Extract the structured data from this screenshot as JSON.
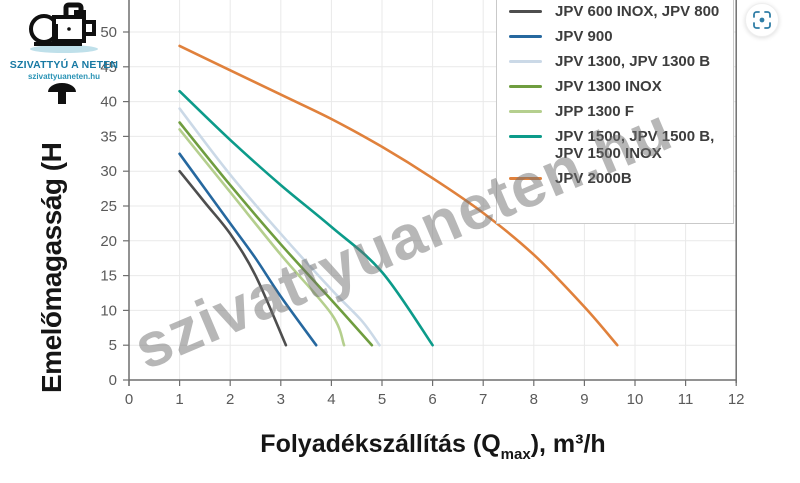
{
  "branding": {
    "title": "SZIVATTYÚ A NETEN",
    "url": "szivattyuaneten.hu",
    "accent_color": "#1779a3"
  },
  "watermark": {
    "text": "szivattyuaneten.hu"
  },
  "icons": {
    "scan_button": "focus-scan-icon",
    "logo": "pump-icon"
  },
  "colors": {
    "axis": "#6f6f6f",
    "grid": "#e9e9e9",
    "tick_label": "#5a5a5a",
    "legend_border": "#c9c9c9",
    "watermark": "#707070"
  },
  "chart_data": {
    "type": "line",
    "title": "",
    "xlabel_full": "Folyadékszállítás (Qmax), m³/h",
    "xlabel_parts": {
      "main": "Folyadékszállítás (Q",
      "sub": "max",
      "suffix": "), m³/h"
    },
    "ylabel": "Emelőmagasság (H",
    "x_unit": "m³/h",
    "xlim": [
      0,
      12
    ],
    "ylim": [
      0,
      50
    ],
    "xticks": [
      0,
      1,
      2,
      3,
      4,
      5,
      6,
      7,
      8,
      9,
      10,
      11,
      12
    ],
    "yticks": [
      0,
      5,
      10,
      15,
      20,
      25,
      30,
      35,
      40,
      45,
      50
    ],
    "grid": true,
    "legend_position": "top-right",
    "series": [
      {
        "name": "JPV 600 INOX, JPV 800",
        "legend_lines": [
          "JPV 600 INOX, JPV 800"
        ],
        "color": "#4e4e4e",
        "points": [
          [
            1,
            30
          ],
          [
            1.5,
            25.5
          ],
          [
            2,
            21
          ],
          [
            2.5,
            15
          ],
          [
            3.1,
            5
          ]
        ]
      },
      {
        "name": "JPV 900",
        "legend_lines": [
          "JPV 900"
        ],
        "color": "#26689f",
        "points": [
          [
            1,
            32.5
          ],
          [
            1.5,
            27.5
          ],
          [
            2,
            22.5
          ],
          [
            2.5,
            17.5
          ],
          [
            3,
            12
          ],
          [
            3.7,
            5
          ]
        ]
      },
      {
        "name": "JPV 1300, JPV 1300 B",
        "legend_lines": [
          "JPV 1300, JPV 1300 B"
        ],
        "color": "#cbd9e7",
        "points": [
          [
            1,
            39
          ],
          [
            2,
            29.5
          ],
          [
            3,
            21
          ],
          [
            4,
            13
          ],
          [
            4.6,
            8.5
          ],
          [
            4.95,
            5
          ]
        ]
      },
      {
        "name": "JPV 1300 INOX",
        "legend_lines": [
          "JPV 1300 INOX"
        ],
        "color": "#6f9d3f",
        "points": [
          [
            1,
            37
          ],
          [
            2,
            28
          ],
          [
            3,
            19.5
          ],
          [
            4,
            11.5
          ],
          [
            4.8,
            5
          ]
        ]
      },
      {
        "name": "JPP 1300 F",
        "legend_lines": [
          "JPP 1300 F"
        ],
        "color": "#b5cf8e",
        "points": [
          [
            1,
            36
          ],
          [
            2,
            27
          ],
          [
            3,
            18
          ],
          [
            4,
            9.5
          ],
          [
            4.25,
            5
          ]
        ]
      },
      {
        "name": "JPV 1500, JPV 1500 B, JPV 1500 INOX",
        "legend_lines": [
          "JPV 1500, JPV 1500 B,",
          "JPV 1500 INOX"
        ],
        "color": "#0c9b8a",
        "points": [
          [
            1,
            41.5
          ],
          [
            2,
            34.5
          ],
          [
            3,
            28
          ],
          [
            4,
            22
          ],
          [
            5,
            15.5
          ],
          [
            6,
            5
          ]
        ]
      },
      {
        "name": "JPV 2000B",
        "legend_lines": [
          "JPV 2000B"
        ],
        "color": "#e0813c",
        "points": [
          [
            1,
            48
          ],
          [
            2,
            44.5
          ],
          [
            3,
            41
          ],
          [
            4,
            37.5
          ],
          [
            5,
            33.5
          ],
          [
            6,
            29
          ],
          [
            7,
            24
          ],
          [
            8,
            18
          ],
          [
            9,
            10.5
          ],
          [
            9.65,
            5
          ]
        ]
      }
    ]
  }
}
